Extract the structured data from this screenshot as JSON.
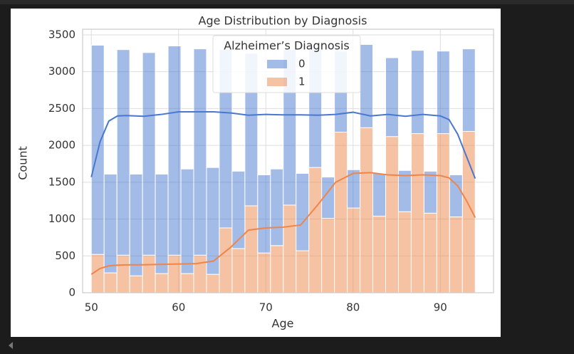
{
  "chart_data": {
    "type": "histogram",
    "title": "Age Distribution by Diagnosis",
    "x_label": "Age",
    "y_label": "Count",
    "legend_title": "Alzheimer’s Diagnosis",
    "legend": "upper center",
    "grid": true,
    "bins": [
      50,
      51.4667,
      52.9333,
      54.4,
      55.8667,
      57.3333,
      58.8,
      60.2667,
      61.7333,
      63.2,
      64.6667,
      66.1333,
      67.6,
      69.0667,
      70.5333,
      72,
      73.4667,
      74.9333,
      76.4,
      77.8667,
      79.3333,
      80.8,
      82.2667,
      83.7333,
      85.2,
      86.6667,
      88.1333,
      89.6,
      91.0667,
      92.5333,
      94
    ],
    "kde_x": [
      50,
      51,
      52,
      53,
      54,
      56,
      58,
      60,
      62,
      64,
      66,
      68,
      70,
      72,
      74,
      76,
      78,
      80,
      82,
      84,
      86,
      88,
      90,
      91,
      92,
      93,
      94
    ],
    "series": [
      {
        "name": "1",
        "color": "#ee854a",
        "values": [
          520,
          270,
          510,
          230,
          510,
          260,
          510,
          260,
          510,
          250,
          880,
          600,
          1180,
          540,
          640,
          1190,
          570,
          1700,
          1010,
          2180,
          1150,
          2240,
          1040,
          2120,
          1100,
          2160,
          1080,
          2160,
          1030,
          2190
        ],
        "kde": [
          250,
          330,
          365,
          375,
          378,
          380,
          385,
          390,
          395,
          430,
          620,
          850,
          880,
          890,
          920,
          1200,
          1500,
          1620,
          1630,
          1600,
          1590,
          1600,
          1590,
          1560,
          1450,
          1250,
          1020
        ]
      },
      {
        "name": "0",
        "color": "#4878d0",
        "values": [
          2840,
          1340,
          2790,
          1380,
          2750,
          1350,
          2840,
          1420,
          2800,
          1450,
          2420,
          1050,
          2070,
          1060,
          1040,
          2110,
          1050,
          1600,
          560,
          1100,
          520,
          1130,
          580,
          1070,
          560,
          1130,
          570,
          1120,
          570,
          1120
        ],
        "kde": [
          1570,
          2050,
          2330,
          2400,
          2405,
          2395,
          2420,
          2455,
          2455,
          2455,
          2440,
          2410,
          2420,
          2415,
          2415,
          2410,
          2420,
          2450,
          2400,
          2420,
          2395,
          2420,
          2400,
          2350,
          2150,
          1850,
          1550
        ]
      }
    ],
    "xlim": [
      49,
      96.1
    ],
    "ylim": [
      0,
      3577
    ],
    "xticks": [
      50,
      60,
      70,
      80,
      90
    ],
    "yticks": [
      0,
      500,
      1000,
      1500,
      2000,
      2500,
      3000,
      3500
    ]
  }
}
